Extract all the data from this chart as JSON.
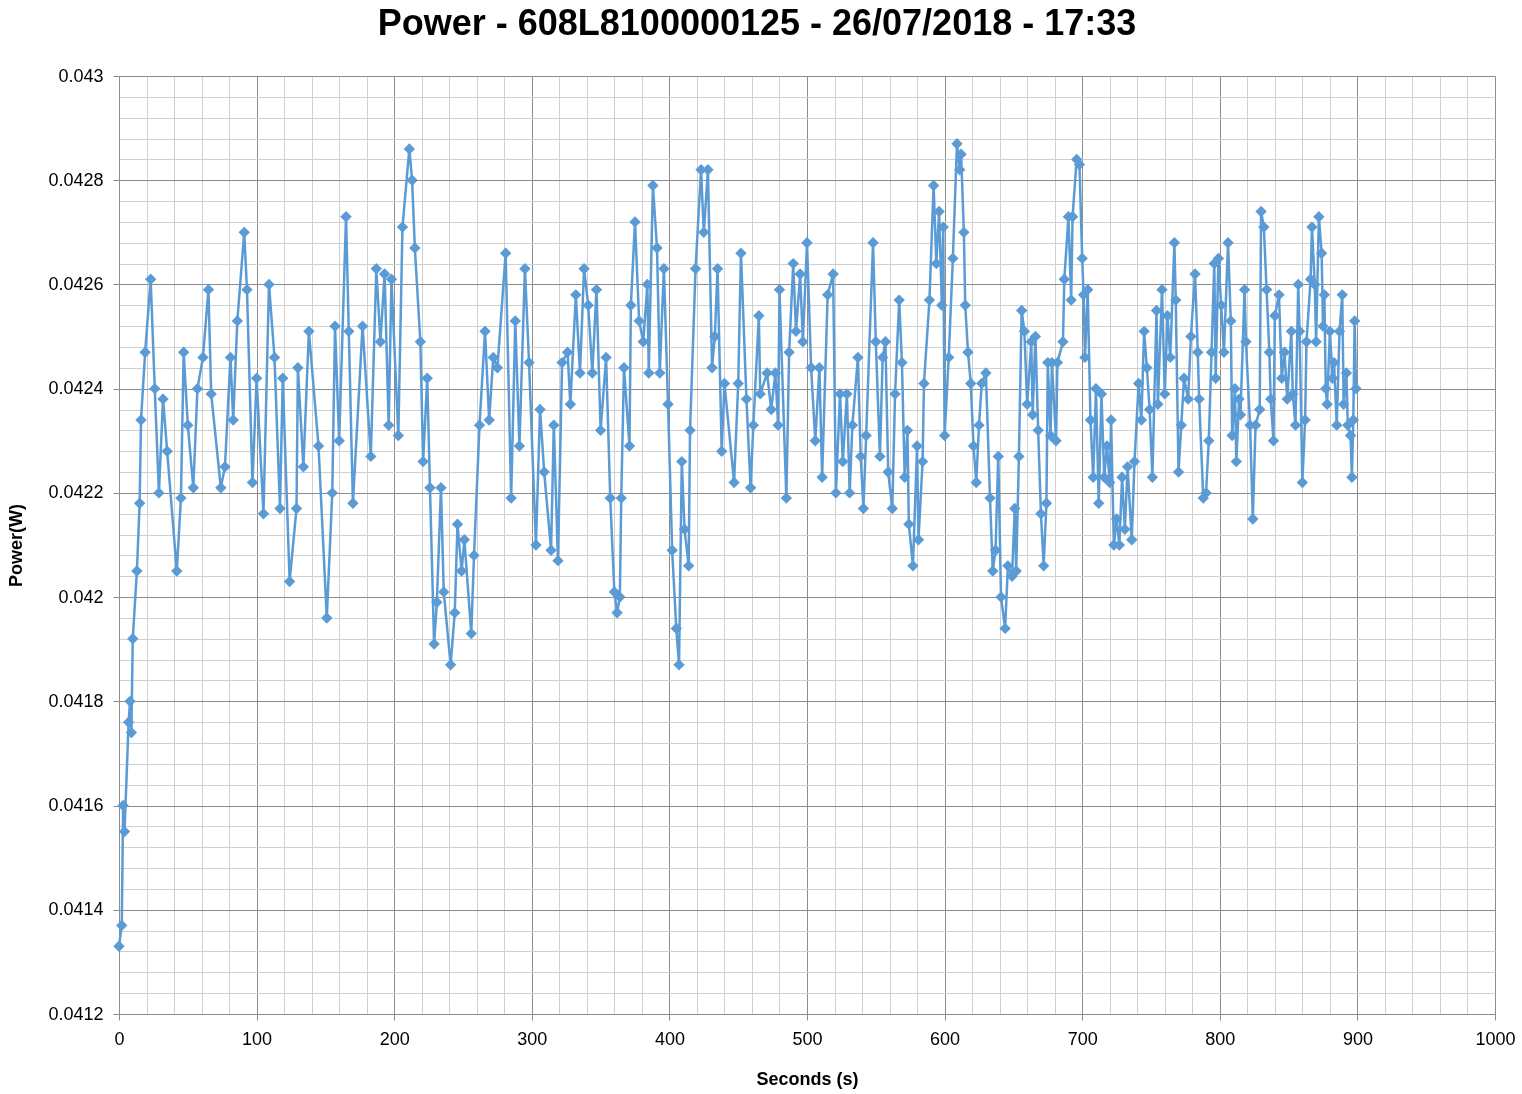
{
  "chart_data": {
    "type": "line",
    "title": "Power - 608L8100000125 - 26/07/2018 - 17:33",
    "xlabel": "Seconds (s)",
    "ylabel": "Power(W)",
    "x": [
      0,
      2,
      3,
      4,
      7,
      8,
      9,
      10,
      13,
      15,
      16,
      19,
      23,
      26,
      29,
      32,
      35,
      42,
      45,
      47,
      50,
      54,
      57,
      61,
      65,
      67,
      74,
      77,
      81,
      83,
      86,
      91,
      93,
      97,
      100,
      105,
      109,
      113,
      117,
      119,
      124,
      129,
      130,
      134,
      138,
      145,
      151,
      155,
      157,
      160,
      165,
      167,
      170,
      177,
      183,
      187,
      190,
      193,
      196,
      198,
      203,
      206,
      211,
      213,
      215,
      219,
      221,
      224,
      226,
      229,
      231,
      234,
      236,
      241,
      244,
      246,
      249,
      251,
      256,
      258,
      262,
      266,
      269,
      272,
      275,
      281,
      285,
      288,
      291,
      295,
      298,
      303,
      306,
      309,
      314,
      316,
      319,
      322,
      326,
      328,
      332,
      335,
      338,
      341,
      344,
      347,
      350,
      354,
      357,
      360,
      362,
      364,
      365,
      367,
      371,
      372,
      375,
      378,
      381,
      384,
      385,
      388,
      391,
      393,
      396,
      399,
      402,
      405,
      407,
      409,
      411,
      414,
      415,
      419,
      423,
      425,
      428,
      431,
      433,
      435,
      438,
      440,
      447,
      450,
      452,
      456,
      459,
      461,
      465,
      466,
      471,
      474,
      477,
      479,
      480,
      485,
      487,
      490,
      492,
      495,
      497,
      500,
      503,
      506,
      509,
      511,
      515,
      519,
      521,
      524,
      526,
      529,
      531,
      533,
      537,
      539,
      541,
      543,
      548,
      550,
      553,
      555,
      557,
      559,
      562,
      564,
      567,
      569,
      571,
      573,
      574,
      577,
      580,
      581,
      584,
      585,
      589,
      592,
      594,
      596,
      598,
      599,
      600,
      603,
      606,
      609,
      611,
      612,
      614,
      615,
      617,
      619,
      621,
      623,
      625,
      627,
      630,
      633,
      635,
      637,
      639,
      641,
      644,
      646,
      649,
      651,
      652,
      654,
      656,
      658,
      660,
      663,
      664,
      666,
      668,
      670,
      672,
      674,
      675,
      677,
      678,
      681,
      682,
      686,
      687,
      690,
      692,
      693,
      696,
      698,
      700,
      701,
      702,
      704,
      706,
      708,
      710,
      712,
      714,
      716,
      718,
      720,
      721,
      723,
      725,
      727,
      729,
      731,
      733,
      736,
      738,
      741,
      743,
      745,
      747,
      749,
      751,
      754,
      755,
      758,
      760,
      762,
      764,
      767,
      768,
      770,
      772,
      774,
      777,
      779,
      782,
      784,
      785,
      788,
      790,
      792,
      794,
      796,
      797,
      799,
      801,
      803,
      806,
      808,
      809,
      811,
      812,
      814,
      815,
      818,
      819,
      822,
      824,
      826,
      829,
      830,
      832,
      834,
      836,
      837,
      839,
      840,
      843,
      845,
      847,
      849,
      852,
      853,
      855,
      857,
      858,
      860,
      862,
      863,
      866,
      867,
      869,
      870,
      872,
      874,
      875,
      876,
      877,
      878,
      880,
      882,
      883,
      885,
      887,
      889,
      890,
      892,
      893,
      895,
      896,
      897,
      898,
      899
    ],
    "series": [
      {
        "color": "#5b9bd5",
        "values": [
          0.04133,
          0.04137,
          0.0416,
          0.04155,
          0.04176,
          0.0418,
          0.04174,
          0.04192,
          0.04205,
          0.04218,
          0.04234,
          0.04247,
          0.04261,
          0.0424,
          0.0422,
          0.04238,
          0.04228,
          0.04205,
          0.04219,
          0.04247,
          0.04233,
          0.04221,
          0.0424,
          0.04246,
          0.04259,
          0.04239,
          0.04221,
          0.04225,
          0.04246,
          0.04234,
          0.04253,
          0.0427,
          0.04259,
          0.04222,
          0.04242,
          0.04216,
          0.0426,
          0.04246,
          0.04217,
          0.04242,
          0.04203,
          0.04217,
          0.04244,
          0.04225,
          0.04251,
          0.04229,
          0.04196,
          0.0422,
          0.04252,
          0.0423,
          0.04273,
          0.04251,
          0.04218,
          0.04252,
          0.04227,
          0.04263,
          0.04249,
          0.04262,
          0.04233,
          0.04261,
          0.04231,
          0.04271,
          0.04286,
          0.0428,
          0.04267,
          0.04249,
          0.04226,
          0.04242,
          0.04221,
          0.04191,
          0.04199,
          0.04221,
          0.04201,
          0.04187,
          0.04197,
          0.04214,
          0.04205,
          0.04211,
          0.04193,
          0.04208,
          0.04233,
          0.04251,
          0.04234,
          0.04246,
          0.04244,
          0.04266,
          0.04219,
          0.04253,
          0.04229,
          0.04263,
          0.04245,
          0.0421,
          0.04236,
          0.04224,
          0.04209,
          0.04233,
          0.04207,
          0.04245,
          0.04247,
          0.04237,
          0.04258,
          0.04243,
          0.04263,
          0.04256,
          0.04243,
          0.04259,
          0.04232,
          0.04246,
          0.04219,
          0.04201,
          0.04197,
          0.042,
          0.04219,
          0.04244,
          0.04229,
          0.04256,
          0.04272,
          0.04253,
          0.04249,
          0.0426,
          0.04243,
          0.04279,
          0.04267,
          0.04243,
          0.04263,
          0.04237,
          0.04209,
          0.04194,
          0.04187,
          0.04226,
          0.04213,
          0.04206,
          0.04232,
          0.04263,
          0.04282,
          0.0427,
          0.04282,
          0.04244,
          0.0425,
          0.04263,
          0.04228,
          0.04241,
          0.04222,
          0.04241,
          0.04266,
          0.04238,
          0.04221,
          0.04233,
          0.04254,
          0.04239,
          0.04243,
          0.04236,
          0.04243,
          0.04233,
          0.04259,
          0.04219,
          0.04247,
          0.04264,
          0.04251,
          0.04262,
          0.04249,
          0.04268,
          0.04244,
          0.0423,
          0.04244,
          0.04223,
          0.04258,
          0.04262,
          0.0422,
          0.04239,
          0.04226,
          0.04239,
          0.0422,
          0.04233,
          0.04246,
          0.04227,
          0.04217,
          0.04231,
          0.04268,
          0.04249,
          0.04227,
          0.04246,
          0.04249,
          0.04224,
          0.04217,
          0.04239,
          0.04257,
          0.04245,
          0.04223,
          0.04232,
          0.04214,
          0.04206,
          0.04229,
          0.04211,
          0.04226,
          0.04241,
          0.04257,
          0.04279,
          0.04264,
          0.04274,
          0.04256,
          0.04271,
          0.04231,
          0.04246,
          0.04265,
          0.04287,
          0.04282,
          0.04285,
          0.0427,
          0.04256,
          0.04247,
          0.04241,
          0.04229,
          0.04222,
          0.04233,
          0.04241,
          0.04243,
          0.04219,
          0.04205,
          0.04209,
          0.04227,
          0.042,
          0.04194,
          0.04206,
          0.04204,
          0.04217,
          0.04205,
          0.04227,
          0.04255,
          0.04251,
          0.04237,
          0.04249,
          0.04235,
          0.0425,
          0.04232,
          0.04216,
          0.04206,
          0.04218,
          0.04245,
          0.04231,
          0.04245,
          0.0423,
          0.04245,
          0.04249,
          0.04261,
          0.04273,
          0.04257,
          0.04273,
          0.04284,
          0.04283,
          0.04265,
          0.04258,
          0.04246,
          0.04259,
          0.04234,
          0.04223,
          0.0424,
          0.04218,
          0.04239,
          0.04223,
          0.04229,
          0.04222,
          0.04234,
          0.0421,
          0.04215,
          0.0421,
          0.04223,
          0.04213,
          0.04225,
          0.04211,
          0.04226,
          0.04241,
          0.04234,
          0.04251,
          0.04244,
          0.04236,
          0.04223,
          0.04255,
          0.04237,
          0.04259,
          0.04239,
          0.04254,
          0.04246,
          0.04268,
          0.04257,
          0.04224,
          0.04233,
          0.04242,
          0.04238,
          0.0425,
          0.04262,
          0.04247,
          0.04238,
          0.04219,
          0.0422,
          0.0423,
          0.04247,
          0.04264,
          0.04242,
          0.04265,
          0.04256,
          0.04247,
          0.04268,
          0.04253,
          0.04231,
          0.0424,
          0.04226,
          0.04238,
          0.04235,
          0.04259,
          0.04249,
          0.04233,
          0.04215,
          0.04233,
          0.04236,
          0.04274,
          0.04271,
          0.04259,
          0.04247,
          0.04238,
          0.0423,
          0.04254,
          0.04258,
          0.04242,
          0.04247,
          0.04238,
          0.04251,
          0.04239,
          0.04233,
          0.0426,
          0.04251,
          0.04222,
          0.04234,
          0.04249,
          0.04261,
          0.04271,
          0.0426,
          0.04249,
          0.04273,
          0.04266,
          0.04252,
          0.04258,
          0.0424,
          0.04237,
          0.04251,
          0.04242,
          0.04245,
          0.04233,
          0.04251,
          0.04258,
          0.04237,
          0.04243,
          0.04233,
          0.04231,
          0.04223,
          0.04234,
          0.04253,
          0.0424
        ]
      }
    ],
    "xlim": [
      0,
      1000
    ],
    "xticks": [
      0,
      {
        "value": 20,
        "label": null
      },
      {
        "value": 40,
        "label": null
      },
      {
        "value": 60,
        "label": null
      },
      {
        "value": 80,
        "label": null
      },
      100,
      {
        "value": 120,
        "label": null
      },
      {
        "value": 140,
        "label": null
      },
      {
        "value": 160,
        "label": null
      },
      {
        "value": 180,
        "label": null
      },
      200,
      {
        "value": 220,
        "label": null
      },
      {
        "value": 240,
        "label": null
      },
      {
        "value": 260,
        "label": null
      },
      {
        "value": 280,
        "label": null
      },
      300,
      {
        "value": 320,
        "label": null
      },
      {
        "value": 340,
        "label": null
      },
      {
        "value": 360,
        "label": null
      },
      {
        "value": 380,
        "label": null
      },
      400,
      {
        "value": 420,
        "label": null
      },
      {
        "value": 440,
        "label": null
      },
      {
        "value": 460,
        "label": null
      },
      {
        "value": 480,
        "label": null
      },
      500,
      {
        "value": 520,
        "label": null
      },
      {
        "value": 540,
        "label": null
      },
      {
        "value": 560,
        "label": null
      },
      {
        "value": 580,
        "label": null
      },
      600,
      {
        "value": 620,
        "label": null
      },
      {
        "value": 640,
        "label": null
      },
      {
        "value": 660,
        "label": null
      },
      {
        "value": 680,
        "label": null
      },
      700,
      {
        "value": 720,
        "label": null
      },
      {
        "value": 740,
        "label": null
      },
      {
        "value": 760,
        "label": null
      },
      {
        "value": 780,
        "label": null
      },
      800,
      {
        "value": 820,
        "label": null
      },
      {
        "value": 840,
        "label": null
      },
      {
        "value": 860,
        "label": null
      },
      {
        "value": 880,
        "label": null
      },
      900,
      {
        "value": 920,
        "label": null
      },
      {
        "value": 940,
        "label": null
      },
      {
        "value": 960,
        "label": null
      },
      {
        "value": 980,
        "label": null
      },
      1000
    ],
    "ylim": [
      0.0412,
      0.043
    ],
    "yticks": [
      0.0412,
      {
        "value": 0.04124,
        "label": null
      },
      {
        "value": 0.04128,
        "label": null
      },
      {
        "value": 0.04132,
        "label": null
      },
      {
        "value": 0.04136,
        "label": null
      },
      0.0414,
      {
        "value": 0.04144,
        "label": null
      },
      {
        "value": 0.04148,
        "label": null
      },
      {
        "value": 0.04152,
        "label": null
      },
      {
        "value": 0.04156,
        "label": null
      },
      0.0416,
      {
        "value": 0.04164,
        "label": null
      },
      {
        "value": 0.04168,
        "label": null
      },
      {
        "value": 0.04172,
        "label": null
      },
      {
        "value": 0.04176,
        "label": null
      },
      0.0418,
      {
        "value": 0.04184,
        "label": null
      },
      {
        "value": 0.04188,
        "label": null
      },
      {
        "value": 0.04192,
        "label": null
      },
      {
        "value": 0.04196,
        "label": null
      },
      0.042,
      {
        "value": 0.04204,
        "label": null
      },
      {
        "value": 0.04208,
        "label": null
      },
      {
        "value": 0.04212,
        "label": null
      },
      {
        "value": 0.04216,
        "label": null
      },
      0.0422,
      {
        "value": 0.04224,
        "label": null
      },
      {
        "value": 0.04228,
        "label": null
      },
      {
        "value": 0.04232,
        "label": null
      },
      {
        "value": 0.04236,
        "label": null
      },
      0.0424,
      {
        "value": 0.04244,
        "label": null
      },
      {
        "value": 0.04248,
        "label": null
      },
      {
        "value": 0.04252,
        "label": null
      },
      {
        "value": 0.04256,
        "label": null
      },
      0.0426,
      {
        "value": 0.04264,
        "label": null
      },
      {
        "value": 0.04268,
        "label": null
      },
      {
        "value": 0.04272,
        "label": null
      },
      {
        "value": 0.04276,
        "label": null
      },
      0.0428,
      {
        "value": 0.04284,
        "label": null
      },
      {
        "value": 0.04288,
        "label": null
      },
      {
        "value": 0.04292,
        "label": null
      },
      {
        "value": 0.04296,
        "label": null
      },
      0.043
    ],
    "grid": true,
    "marker": "diamond",
    "line_style": "solid"
  }
}
